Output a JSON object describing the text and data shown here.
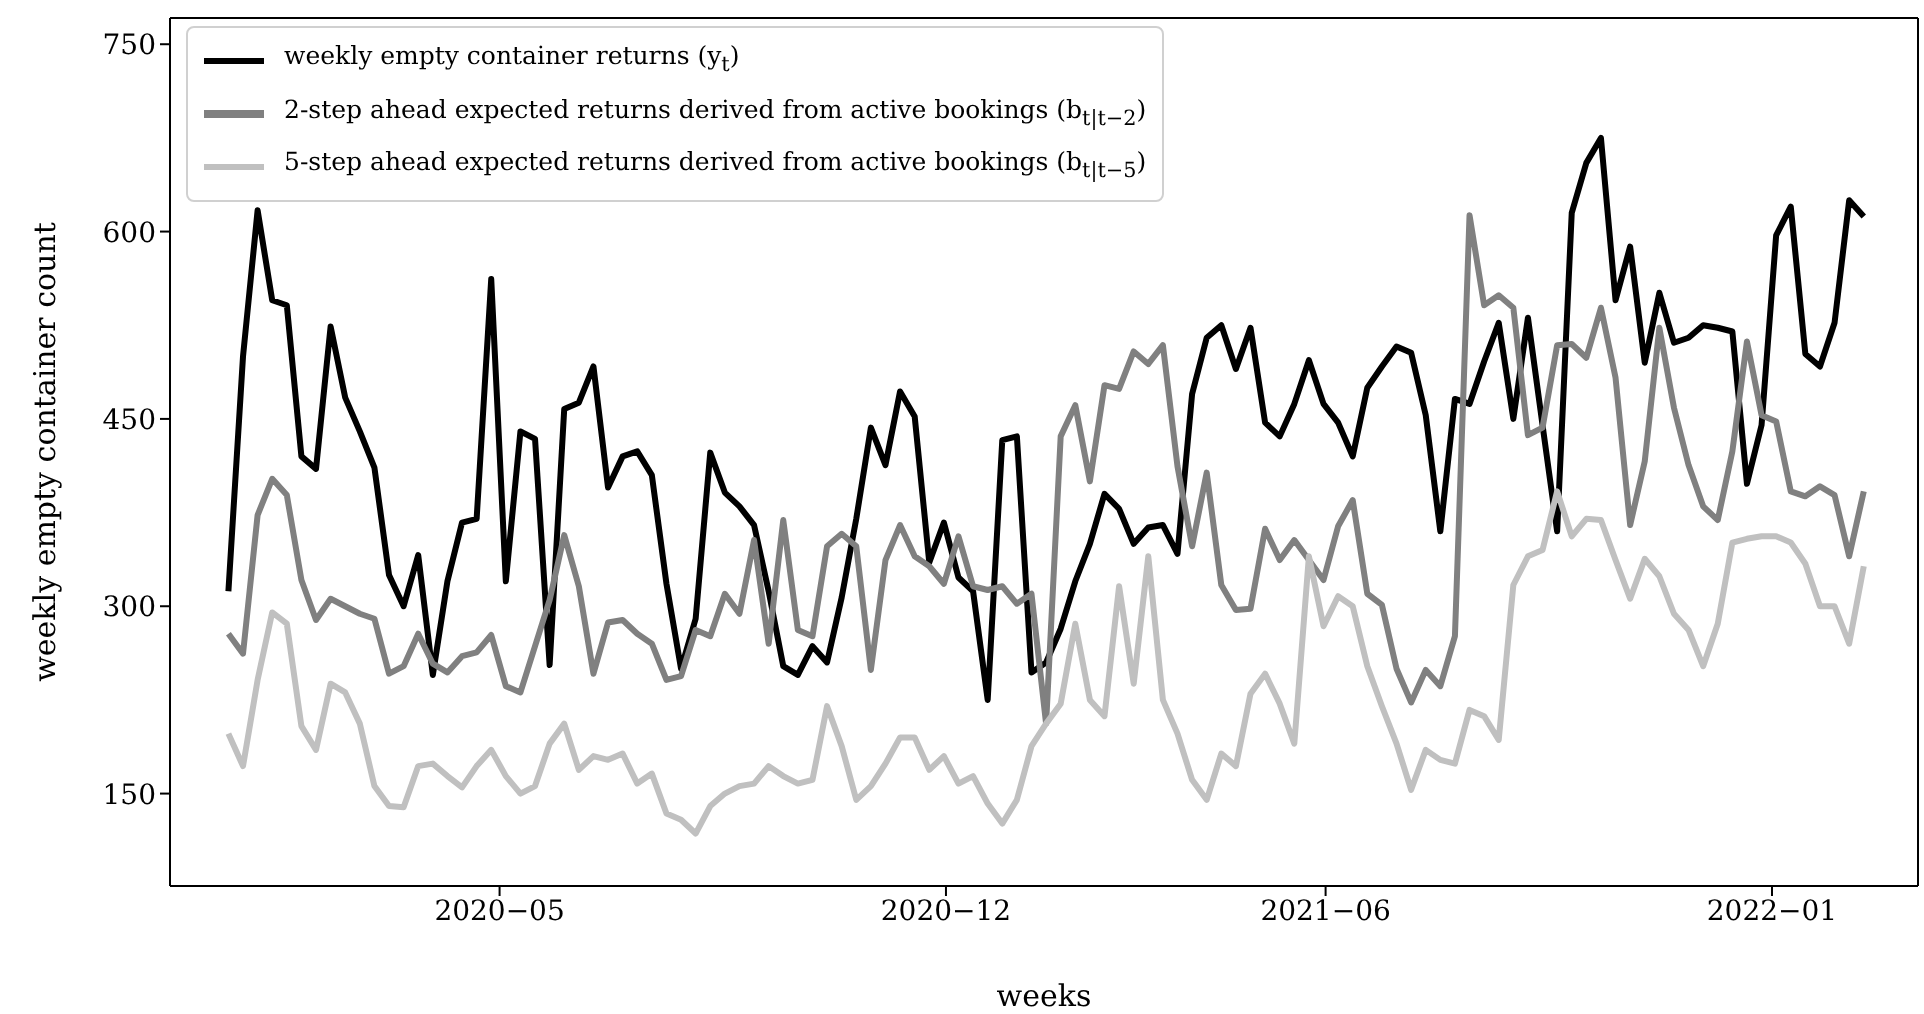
{
  "chart_data": {
    "type": "line",
    "xlabel": "weeks",
    "ylabel": "weekly empty container count",
    "x": [
      "2019-12-23",
      "2019-12-30",
      "2020-01-06",
      "2020-01-13",
      "2020-01-20",
      "2020-01-27",
      "2020-02-03",
      "2020-02-10",
      "2020-02-17",
      "2020-02-24",
      "2020-03-02",
      "2020-03-09",
      "2020-03-16",
      "2020-03-23",
      "2020-03-30",
      "2020-04-06",
      "2020-04-13",
      "2020-04-20",
      "2020-04-27",
      "2020-05-04",
      "2020-05-11",
      "2020-05-18",
      "2020-05-25",
      "2020-06-01",
      "2020-06-08",
      "2020-06-15",
      "2020-06-22",
      "2020-06-29",
      "2020-07-06",
      "2020-07-13",
      "2020-07-20",
      "2020-07-27",
      "2020-08-03",
      "2020-08-10",
      "2020-08-17",
      "2020-08-24",
      "2020-08-31",
      "2020-09-07",
      "2020-09-14",
      "2020-09-21",
      "2020-09-28",
      "2020-10-05",
      "2020-10-12",
      "2020-10-19",
      "2020-10-26",
      "2020-11-02",
      "2020-11-09",
      "2020-11-16",
      "2020-11-23",
      "2020-11-30",
      "2020-12-07",
      "2020-12-14",
      "2020-12-21",
      "2020-12-28",
      "2021-01-04",
      "2021-01-11",
      "2021-01-18",
      "2021-01-25",
      "2021-02-01",
      "2021-02-08",
      "2021-02-15",
      "2021-02-22",
      "2021-03-01",
      "2021-03-08",
      "2021-03-15",
      "2021-03-22",
      "2021-03-29",
      "2021-04-05",
      "2021-04-12",
      "2021-04-19",
      "2021-04-26",
      "2021-05-03",
      "2021-05-10",
      "2021-05-17",
      "2021-05-24",
      "2021-05-31",
      "2021-06-07",
      "2021-06-14",
      "2021-06-21",
      "2021-06-28",
      "2021-07-05",
      "2021-07-12",
      "2021-07-19",
      "2021-07-26",
      "2021-08-02",
      "2021-08-09",
      "2021-08-16",
      "2021-08-23",
      "2021-08-30",
      "2021-09-06",
      "2021-09-13",
      "2021-09-20",
      "2021-09-27",
      "2021-10-04",
      "2021-10-11",
      "2021-10-18",
      "2021-10-25",
      "2021-11-01",
      "2021-11-08",
      "2021-11-15",
      "2021-11-22",
      "2021-11-29",
      "2021-12-06",
      "2021-12-13",
      "2021-12-20",
      "2021-12-27",
      "2022-01-03",
      "2022-01-10",
      "2022-01-17",
      "2022-01-24",
      "2022-01-31",
      "2022-02-07",
      "2022-02-14"
    ],
    "series": [
      {
        "name": "weekly empty container returns (y$_{t}$)",
        "color": "#000000",
        "values": [
          312,
          500,
          617,
          545,
          541,
          420,
          410,
          524,
          467,
          440,
          411,
          325,
          300,
          341,
          245,
          320,
          367,
          370,
          562,
          320,
          440,
          434,
          253,
          458,
          463,
          492,
          395,
          420,
          424,
          405,
          318,
          250,
          290,
          423,
          391,
          380,
          365,
          312,
          252,
          245,
          268,
          255,
          307,
          370,
          443,
          413,
          472,
          452,
          335,
          367,
          323,
          312,
          225,
          433,
          436,
          247,
          255,
          282,
          320,
          350,
          390,
          378,
          350,
          363,
          365,
          342,
          470,
          515,
          525,
          490,
          523,
          447,
          436,
          462,
          497,
          462,
          447,
          420,
          475,
          492,
          508,
          503,
          453,
          360,
          466,
          462,
          496,
          527,
          450,
          531,
          445,
          360,
          615,
          655,
          675,
          545,
          588,
          495,
          551,
          511,
          515,
          525,
          523,
          520,
          398,
          445,
          597,
          620,
          502,
          492,
          527,
          625,
          612
        ]
      },
      {
        "name": "2-step ahead expected returns derived from active bookings (b$_{t|t−2}$)",
        "color": "#808080",
        "values": [
          278,
          262,
          373,
          402,
          389,
          321,
          289,
          306,
          300,
          294,
          290,
          246,
          252,
          278,
          254,
          247,
          260,
          263,
          277,
          236,
          231,
          268,
          305,
          357,
          316,
          246,
          287,
          289,
          278,
          270,
          241,
          244,
          281,
          276,
          310,
          294,
          353,
          270,
          369,
          281,
          276,
          348,
          358,
          348,
          249,
          337,
          365,
          340,
          332,
          318,
          356,
          316,
          313,
          316,
          302,
          310,
          206,
          436,
          461,
          400,
          477,
          474,
          504,
          494,
          509,
          412,
          348,
          407,
          317,
          297,
          298,
          362,
          337,
          353,
          337,
          321,
          364,
          385,
          310,
          301,
          250,
          223,
          249,
          236,
          276,
          613,
          541,
          549,
          539,
          437,
          443,
          509,
          510,
          499,
          539,
          483,
          365,
          416,
          523,
          459,
          413,
          380,
          369,
          424,
          512,
          453,
          448,
          392,
          388,
          396,
          389,
          340,
          392
        ]
      },
      {
        "name": "5-step ahead expected returns derived from active bookings (b$_{t|t−5}$)",
        "color": "#c0c0c0",
        "values": [
          198,
          172,
          241,
          295,
          286,
          204,
          185,
          238,
          231,
          206,
          156,
          140,
          139,
          172,
          174,
          164,
          155,
          172,
          185,
          164,
          150,
          156,
          190,
          206,
          169,
          180,
          177,
          182,
          158,
          166,
          134,
          129,
          118,
          140,
          150,
          156,
          158,
          172,
          164,
          158,
          161,
          220,
          188,
          145,
          156,
          174,
          195,
          195,
          169,
          180,
          158,
          164,
          142,
          126,
          145,
          188,
          206,
          222,
          286,
          225,
          212,
          316,
          238,
          340,
          225,
          198,
          161,
          145,
          182,
          172,
          230,
          246,
          222,
          190,
          340,
          284,
          308,
          300,
          252,
          220,
          190,
          153,
          185,
          177,
          174,
          217,
          212,
          193,
          317,
          340,
          345,
          392,
          356,
          370,
          369,
          337,
          306,
          338,
          324,
          294,
          281,
          252,
          286,
          351,
          354,
          356,
          356,
          351,
          334,
          300,
          300,
          270,
          332
        ]
      }
    ],
    "xlim": [
      "2019-11-25",
      "2022-03-12"
    ],
    "xticks": [
      {
        "value": "2020-05",
        "label": "2020−05"
      },
      {
        "value": "2020-12",
        "label": "2020−12"
      },
      {
        "value": "2021-06",
        "label": "2021−06"
      },
      {
        "value": "2022-01",
        "label": "2022−01"
      }
    ],
    "ylim": [
      76,
      771
    ],
    "yticks": [
      150,
      300,
      450,
      600,
      750
    ],
    "grid": false,
    "legend": "top left",
    "marker": "none",
    "line_style": "solid"
  }
}
